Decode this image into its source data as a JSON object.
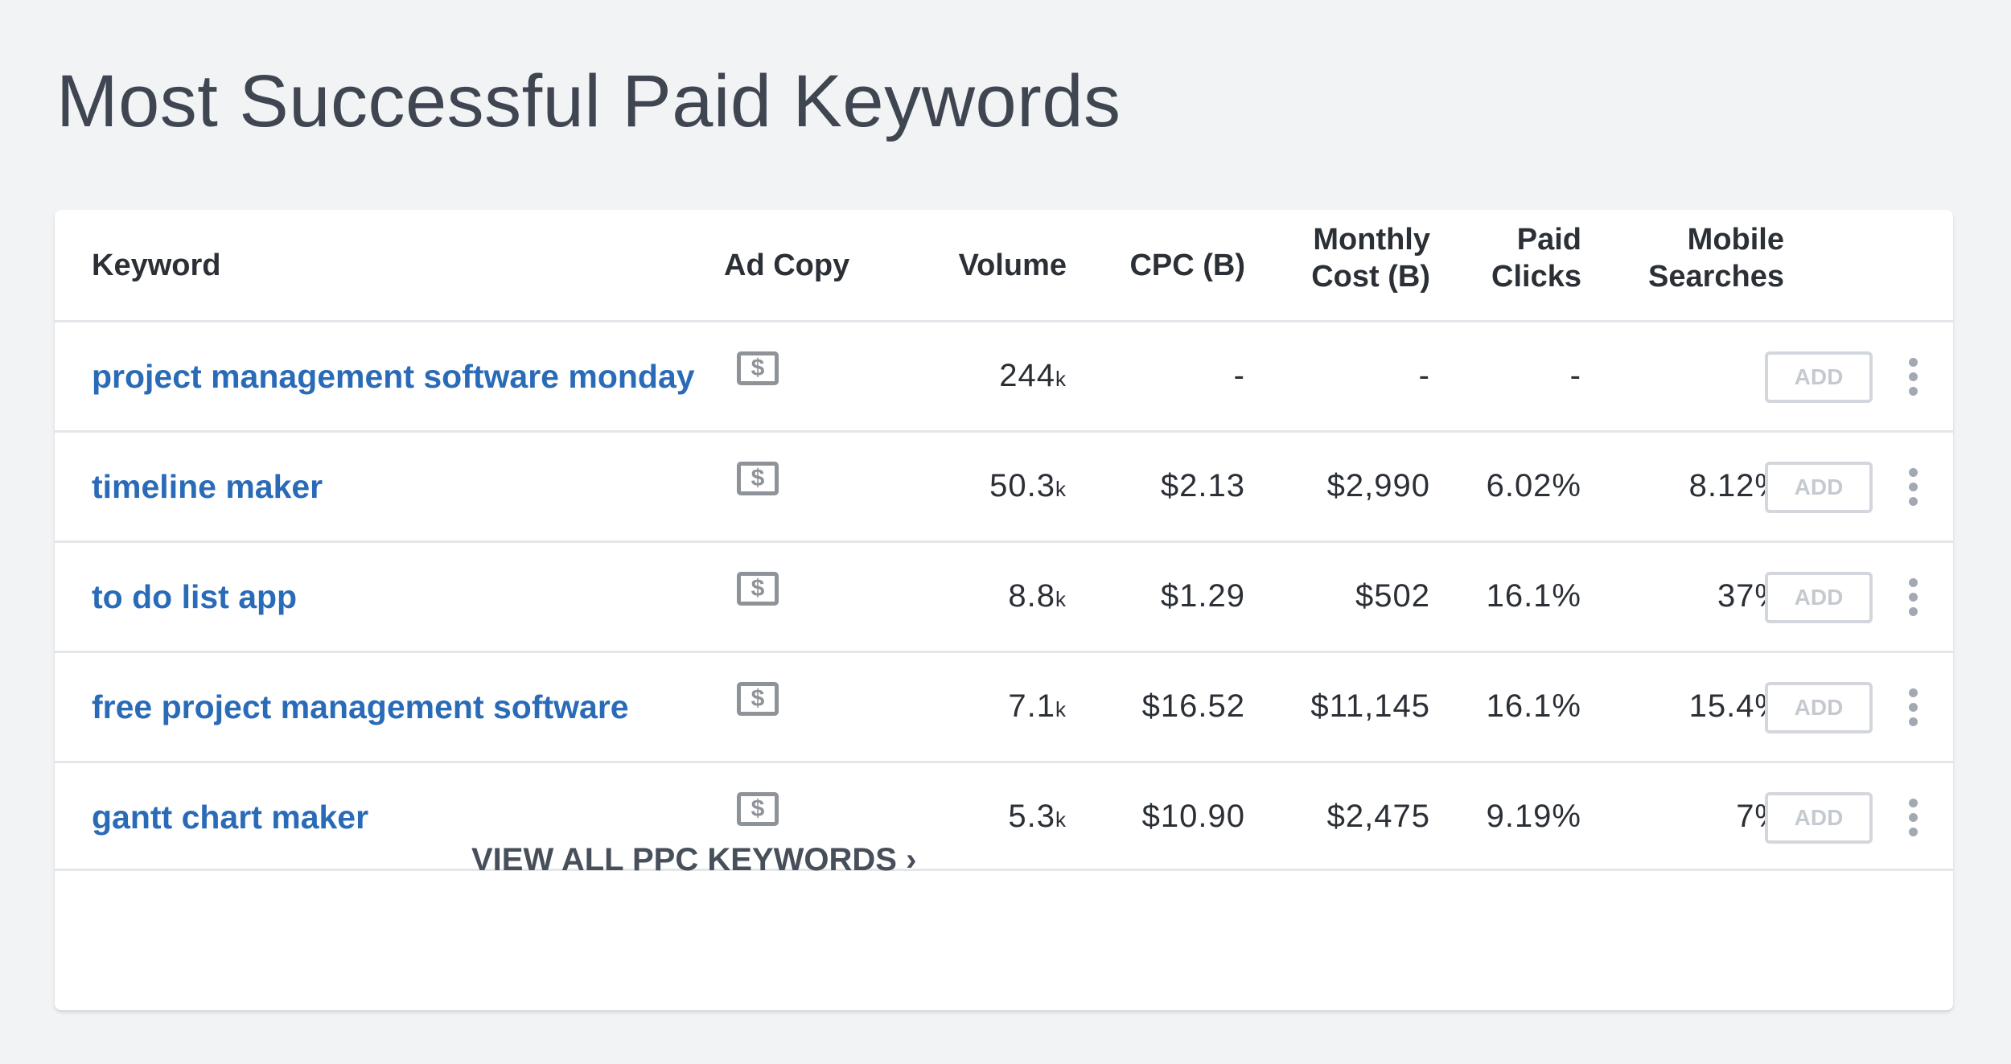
{
  "title": "Most Successful Paid Keywords",
  "table": {
    "headers": {
      "keyword": "Keyword",
      "ad_copy": "Ad Copy",
      "volume": "Volume",
      "cpc": "CPC (B)",
      "monthly_cost_1": "Monthly",
      "monthly_cost_2": "Cost (B)",
      "paid_clicks_1": "Paid",
      "paid_clicks_2": "Clicks",
      "mobile_1": "Mobile",
      "mobile_2": "Searches"
    },
    "rows": [
      {
        "keyword": "project management software monday",
        "ad_icon": "$",
        "volume": "244",
        "unit": "k",
        "cpc": "-",
        "monthly": "-",
        "paid": "-",
        "mobile": "-",
        "add": "ADD"
      },
      {
        "keyword": "timeline maker",
        "ad_icon": "$",
        "volume": "50.3",
        "unit": "k",
        "cpc": "$2.13",
        "monthly": "$2,990",
        "paid": "6.02%",
        "mobile": "8.12%",
        "add": "ADD"
      },
      {
        "keyword": "to do list app",
        "ad_icon": "$",
        "volume": "8.8",
        "unit": "k",
        "cpc": "$1.29",
        "monthly": "$502",
        "paid": "16.1%",
        "mobile": "37%",
        "add": "ADD"
      },
      {
        "keyword": "free project management software",
        "ad_icon": "$",
        "volume": "7.1",
        "unit": "k",
        "cpc": "$16.52",
        "monthly": "$11,145",
        "paid": "16.1%",
        "mobile": "15.4%",
        "add": "ADD"
      },
      {
        "keyword": "gantt chart maker",
        "ad_icon": "$",
        "volume": "5.3",
        "unit": "k",
        "cpc": "$10.90",
        "monthly": "$2,475",
        "paid": "9.19%",
        "mobile": "7%",
        "add": "ADD"
      }
    ]
  },
  "footer": {
    "view_all": "VIEW ALL PPC KEYWORDS",
    "chevron": "›"
  },
  "colors": {
    "link": "#2a6bb8",
    "background": "#f2f3f5",
    "text": "#2b2f36"
  }
}
